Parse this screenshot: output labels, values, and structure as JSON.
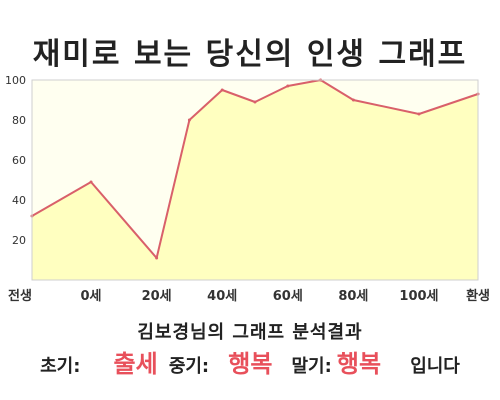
{
  "chart_data": {
    "type": "area",
    "title": "재미로 보는 당신의 인생 그래프",
    "xlabel": "",
    "ylabel": "",
    "ylim": [
      0,
      100
    ],
    "y_ticks": [
      20,
      40,
      60,
      80,
      100
    ],
    "x_tick_labels": [
      "전생",
      "0세",
      "20세",
      "40세",
      "60세",
      "80세",
      "100세",
      "환생"
    ],
    "x_tick_ages": [
      -18,
      0,
      20,
      40,
      60,
      80,
      100,
      118
    ],
    "xlim": [
      -18,
      118
    ],
    "grid": false,
    "series": [
      {
        "x": [
          -18,
          0,
          20,
          30,
          40,
          50,
          60,
          70,
          80,
          100,
          118
        ],
        "y": [
          32,
          49,
          11,
          80,
          95,
          89,
          97,
          100,
          90,
          83,
          93
        ]
      }
    ],
    "colors": {
      "line": "#d9606a",
      "fill": "#ffffc0"
    }
  },
  "result": {
    "heading": "김보경님의 그래프 분석결과",
    "early_label": "초기:",
    "early_value": "출세",
    "mid_label": "중기:",
    "mid_value": "행복",
    "late_label": "말기:",
    "late_value": "행복",
    "ending": "입니다"
  }
}
